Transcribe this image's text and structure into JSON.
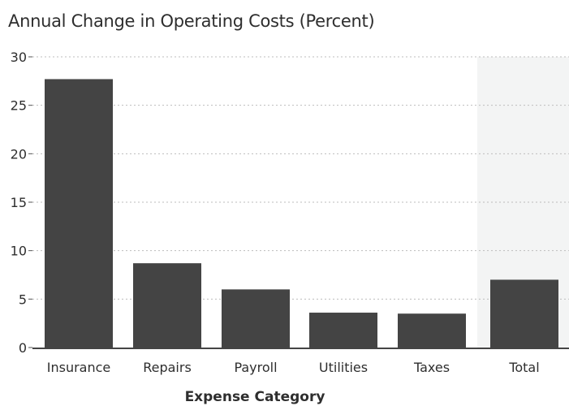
{
  "chart_data": {
    "type": "bar",
    "title": "Annual Change in Operating Costs (Percent)",
    "xlabel": "Expense Category",
    "ylabel": "",
    "categories": [
      "Insurance",
      "Repairs",
      "Payroll",
      "Utilities",
      "Taxes",
      "Total"
    ],
    "values": [
      27.7,
      8.7,
      6.0,
      3.6,
      3.5,
      7.0
    ],
    "ylim": [
      0,
      30
    ],
    "yticks": [
      0,
      5,
      10,
      15,
      20,
      25,
      30
    ],
    "grid": true,
    "bar_color": "#444444",
    "highlight_color": "#f3f4f4"
  }
}
